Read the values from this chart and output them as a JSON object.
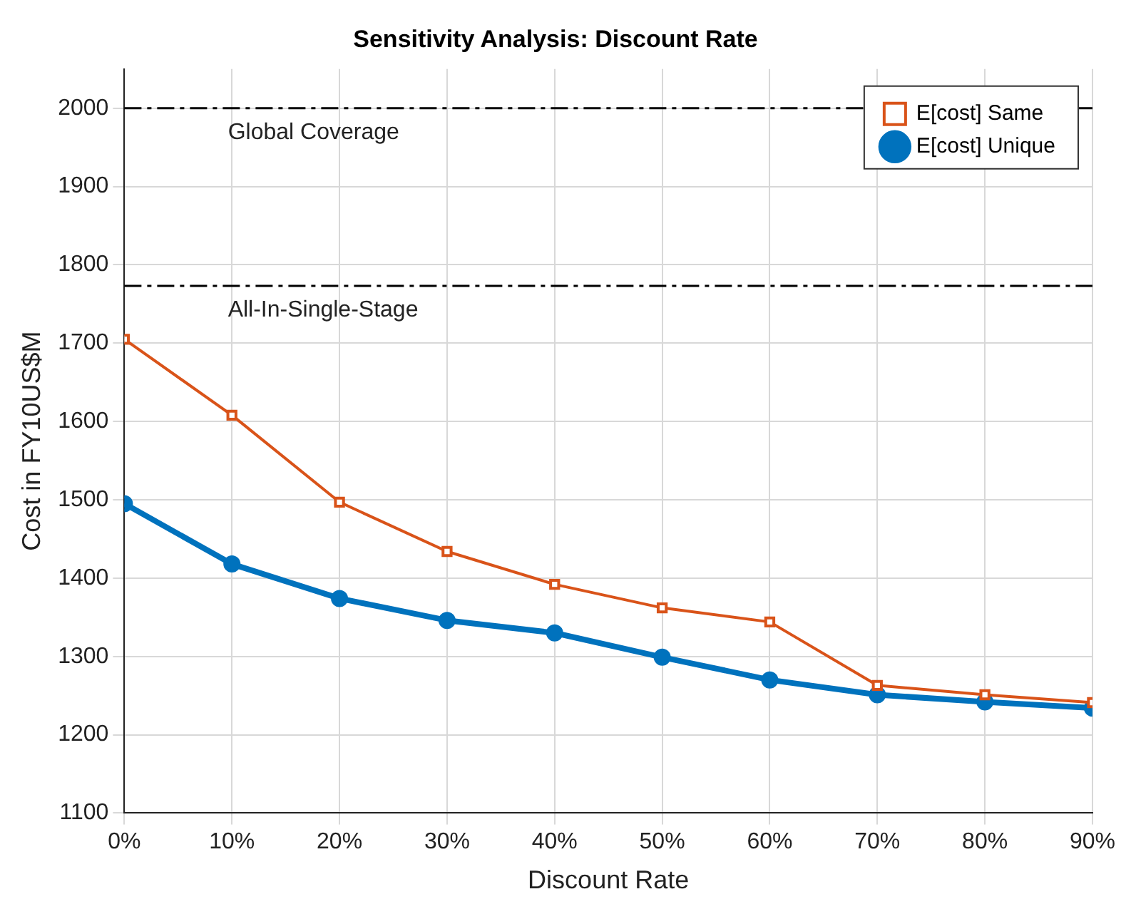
{
  "chart_data": {
    "type": "line",
    "title": "Sensitivity Analysis: Discount Rate",
    "xlabel": "Discount Rate",
    "ylabel": "Cost in FY10US$M",
    "x": [
      0,
      10,
      20,
      30,
      40,
      50,
      60,
      70,
      80,
      90
    ],
    "series": [
      {
        "name": "E[cost] Unique",
        "color": "#0072bd",
        "marker": "circle",
        "values": [
          1495,
          1418,
          1374,
          1346,
          1330,
          1299,
          1270,
          1251,
          1242,
          1234
        ]
      },
      {
        "name": "E[cost] Same",
        "color": "#d95319",
        "marker": "square",
        "values": [
          1705,
          1608,
          1497,
          1434,
          1392,
          1362,
          1344,
          1263,
          1251,
          1241
        ]
      }
    ],
    "xlim": [
      0,
      90
    ],
    "xticks": [
      {
        "value": 0,
        "label": "0%"
      },
      {
        "value": 10,
        "label": "10%"
      },
      {
        "value": 20,
        "label": "20%"
      },
      {
        "value": 30,
        "label": "30%"
      },
      {
        "value": 40,
        "label": "40%"
      },
      {
        "value": 50,
        "label": "50%"
      },
      {
        "value": 60,
        "label": "60%"
      },
      {
        "value": 70,
        "label": "70%"
      },
      {
        "value": 80,
        "label": "80%"
      },
      {
        "value": 90,
        "label": "90%"
      }
    ],
    "ylim": [
      1100,
      2050
    ],
    "yticks": [
      1100,
      1200,
      1300,
      1400,
      1500,
      1600,
      1700,
      1800,
      1900,
      2000
    ],
    "ref_lines": [
      {
        "axis": "y",
        "value": 2000,
        "label": "Global Coverage",
        "color": "#000000",
        "line_style": "dashed"
      },
      {
        "axis": "y",
        "value": 1773,
        "label": "All-In-Single-Stage",
        "color": "#000000",
        "line_style": "dashed"
      }
    ],
    "grid": true,
    "legend": "top right"
  }
}
